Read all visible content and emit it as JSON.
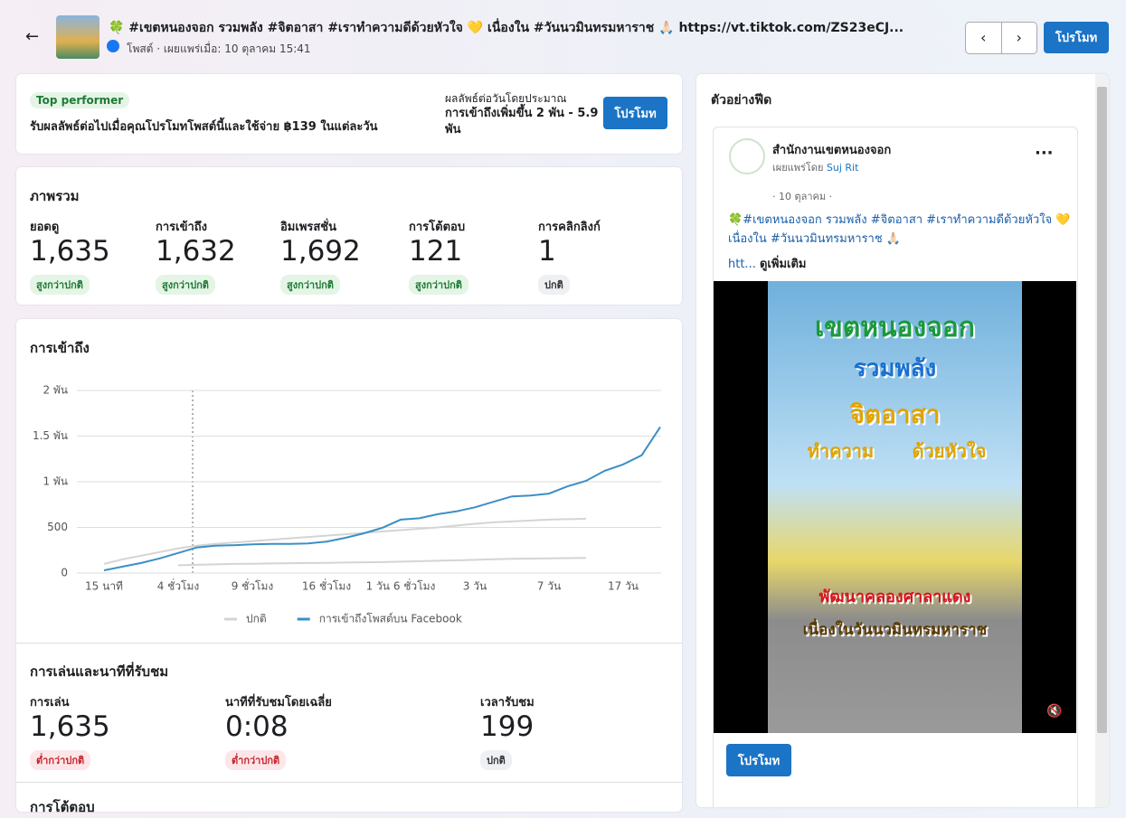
{
  "header": {
    "title": "🍀 #เขตหนองจอก รวมพลัง #จิตอาสา #เราทำความดีด้วยหัวใจ 💛 เนื่องใน #วันนวมินทรมหาราช 🙏🏻 https://vt.tiktok.com/ZS23eCJ...",
    "meta": "โพสต์ · เผยแพร่เมื่อ: 10 ตุลาคม 15:41",
    "promote_button": "โปรโมท"
  },
  "promo": {
    "badge": "Top performer",
    "text": "รับผลลัพธ์ต่อไปเมื่อคุณโปรโมทโพสต์นี้และใช้จ่าย ฿139 ในแต่ละวัน",
    "estimate_label": "ผลลัพธ์ต่อวันโดยประมาณ",
    "estimate": "การเข้าถึงเพิ่มขึ้น 2 พัน - 5.9 พัน",
    "button": "โปรโมท"
  },
  "overview": {
    "title": "ภาพรวม",
    "metrics": [
      {
        "label": "ยอดดู",
        "value": "1,635",
        "status": "สูงกว่าปกติ",
        "tone": "up"
      },
      {
        "label": "การเข้าถึง",
        "value": "1,632",
        "status": "สูงกว่าปกติ",
        "tone": "up"
      },
      {
        "label": "อิมเพรสชั่น",
        "value": "1,692",
        "status": "สูงกว่าปกติ",
        "tone": "up"
      },
      {
        "label": "การโต้ตอบ",
        "value": "121",
        "status": "สูงกว่าปกติ",
        "tone": "up"
      },
      {
        "label": "การคลิกลิงก์",
        "value": "1",
        "status": "ปกติ",
        "tone": "normal"
      }
    ]
  },
  "chart_data": {
    "type": "line",
    "title": "การเข้าถึง",
    "categories": [
      "15 นาที",
      null,
      null,
      null,
      "4 ชั่วโมง",
      null,
      null,
      null,
      "9 ชั่วโมง",
      null,
      null,
      null,
      "16 ชั่วโมง",
      null,
      null,
      null,
      "1 วัน 6 ชั่วโมง",
      null,
      null,
      null,
      "3 วัน",
      null,
      null,
      null,
      "7 วัน",
      null,
      null,
      null,
      "17 วัน",
      null,
      null
    ],
    "series": [
      {
        "name": "ปกติ",
        "color": "#d4d4d4",
        "values": [
          100,
          150,
          190,
          230,
          270,
          300,
          320,
          335,
          350,
          365,
          380,
          395,
          410,
          425,
          440,
          455,
          470,
          485,
          500,
          520,
          540,
          555,
          565,
          575,
          585,
          590,
          595,
          null,
          null,
          null,
          null
        ],
        "low": [
          null,
          null,
          null,
          null,
          85,
          90,
          95,
          100,
          102,
          105,
          108,
          110,
          112,
          115,
          118,
          120,
          125,
          130,
          135,
          140,
          145,
          150,
          155,
          158,
          160,
          163,
          166,
          null,
          null,
          null,
          null
        ]
      },
      {
        "name": "การเข้าถึงโพสต์บน Facebook",
        "color": "#3b8fc4",
        "values": [
          30,
          70,
          110,
          160,
          220,
          280,
          300,
          305,
          315,
          320,
          320,
          325,
          345,
          385,
          435,
          495,
          585,
          600,
          645,
          675,
          720,
          780,
          840,
          850,
          870,
          950,
          1010,
          1120,
          1190,
          1290,
          1600
        ]
      }
    ],
    "ylim": [
      0,
      2000
    ],
    "yticks": [
      0,
      500,
      {
        "value": 1000,
        "label": "1 พัน"
      },
      {
        "value": 1500,
        "label": "1.5 พัน"
      },
      {
        "value": 2000,
        "label": "2 พัน"
      }
    ],
    "grid": true
  },
  "playback": {
    "title": "การเล่นและนาทีที่รับชม",
    "metrics": [
      {
        "label": "การเล่น",
        "value": "1,635",
        "status": "ต่ำกว่าปกติ",
        "tone": "down"
      },
      {
        "label": "นาทีที่รับชมโดยเฉลี่ย",
        "value": "0:08",
        "status": "ต่ำกว่าปกติ",
        "tone": "down"
      },
      {
        "label": "เวลารับชม",
        "value": "199",
        "status": "ปกติ",
        "tone": "normal"
      }
    ]
  },
  "next_section": {
    "title": "การโต้ตอบ"
  },
  "preview": {
    "title": "ตัวอย่างฟีด",
    "page_name": "สำนักงานเขตหนองจอก",
    "published_by": "เผยแพร่โดย",
    "author": "Suj Rit",
    "date": "· 10 ตุลาคม ·",
    "text": "🍀#เขตหนองจอก รวมพลัง #จิตอาสา #เราทำความดีด้วยหัวใจ 💛 เนื่องใน #วันนวมินทรมหาราช 🙏🏻",
    "link": "htt...",
    "see_more": "ดูเพิ่มเติม",
    "video_text": [
      "เขตหนองจอก",
      "รวมพลัง",
      "จิตอาสา",
      "ทำความ",
      "ด้วยหัวใจ",
      "พัฒนาคลองศาลาแดง",
      "เนื่องในวันนวมินทรมหาราช"
    ],
    "button": "โปรโมท"
  }
}
